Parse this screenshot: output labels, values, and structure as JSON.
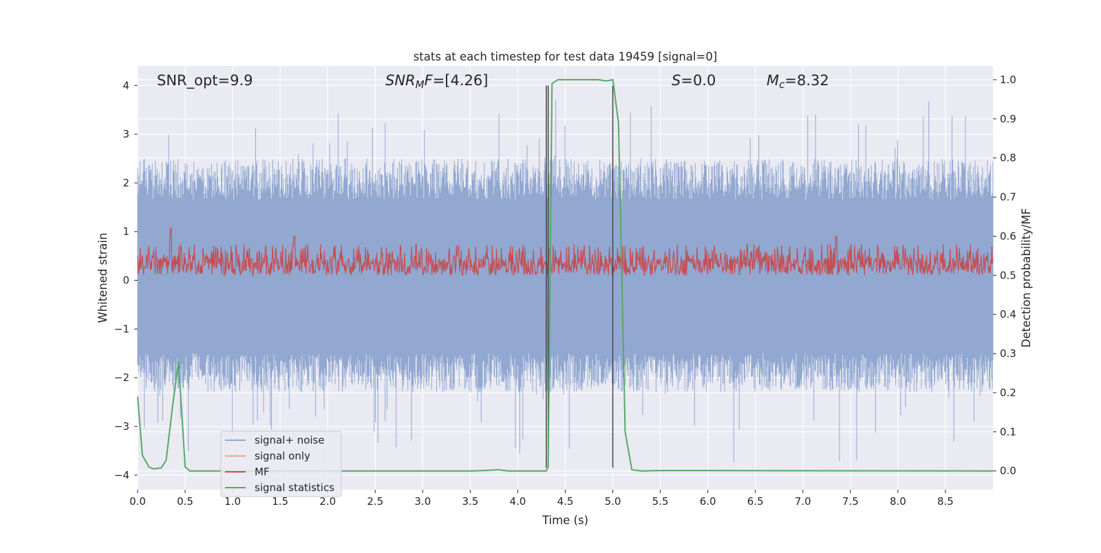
{
  "chart_data": {
    "type": "line",
    "title": "stats at each timestep for test data 19459 [signal=0]",
    "xlabel": "Time (s)",
    "ylabel": "Whitened strain",
    "y2label": "Detection probability/MF",
    "xlim": [
      0,
      9.0
    ],
    "ylim": [
      -4.3,
      4.4
    ],
    "y2lim": [
      -0.048,
      1.035
    ],
    "x_ticks": [
      "0.0",
      "0.5",
      "1.0",
      "1.5",
      "2.0",
      "2.5",
      "3.0",
      "3.5",
      "4.0",
      "4.5",
      "5.0",
      "5.5",
      "6.0",
      "6.5",
      "7.0",
      "7.5",
      "8.0",
      "8.5"
    ],
    "y_ticks": [
      "4",
      "3",
      "2",
      "1",
      "0",
      "−1",
      "−2",
      "−3",
      "−4"
    ],
    "y2_ticks": [
      "1.0",
      "0.9",
      "0.8",
      "0.7",
      "0.6",
      "0.5",
      "0.4",
      "0.3",
      "0.2",
      "0.1",
      "0.0"
    ],
    "grid": true,
    "legend_position": "lower-left",
    "annotations": {
      "snr_opt": "SNR_opt=9.9",
      "snr_mf_main": "SNR",
      "snr_mf_sub": "M",
      "snr_mf_rest": "F",
      "snr_mf_value": "=[4.26]",
      "s_main": "S",
      "s_value": "=0.0",
      "mc_main": "M",
      "mc_sub": "c",
      "mc_value": "=8.32"
    },
    "series": [
      {
        "name": "signal+ noise",
        "color": "#92a8d1",
        "description_level": "noise band",
        "envelope": {
          "x": [
            0,
            9.0
          ],
          "typical_low": -2.3,
          "typical_high": 2.5,
          "max": 3.8,
          "min": -3.8
        },
        "dense_band": [
          -1.5,
          1.65
        ]
      },
      {
        "name": "signal only",
        "color": "#e9a98f",
        "values": []
      },
      {
        "name": "MF",
        "color": "#c44e52",
        "axis": "right",
        "band": [
          0.5,
          0.6
        ],
        "peaks": [
          [
            0.35,
            0.62
          ],
          [
            1.65,
            0.6
          ],
          [
            7.35,
            0.6
          ]
        ]
      },
      {
        "name": "signal statistics",
        "color": "#55a868",
        "axis": "right",
        "x": [
          0.0,
          0.05,
          0.12,
          0.17,
          0.25,
          0.3,
          0.37,
          0.43,
          0.5,
          0.55,
          1.0,
          3.5,
          3.65,
          3.8,
          3.9,
          4.3,
          4.32,
          4.36,
          4.42,
          4.5,
          4.85,
          4.93,
          5.0,
          5.06,
          5.13,
          5.2,
          5.3,
          5.5,
          9.0
        ],
        "values": [
          0.19,
          0.04,
          0.01,
          0.005,
          0.008,
          0.027,
          0.17,
          0.28,
          0.01,
          0.0,
          0.0,
          0.0,
          0.001,
          0.003,
          0.0,
          0.0,
          0.01,
          0.99,
          1.0,
          1.0,
          1.0,
          0.997,
          1.0,
          0.89,
          0.1,
          0.003,
          0.0,
          0.001,
          0.0
        ]
      }
    ],
    "vertical_lines": [
      {
        "x": 4.3,
        "y_from": -3.85,
        "y_to": 4.0,
        "color": "#444444"
      },
      {
        "x": 4.32,
        "y_from": -3.85,
        "y_to": 4.0,
        "color": "#444444"
      },
      {
        "x": 5.0,
        "y_from": -3.85,
        "y_to": 4.0,
        "color": "#444444"
      }
    ]
  }
}
